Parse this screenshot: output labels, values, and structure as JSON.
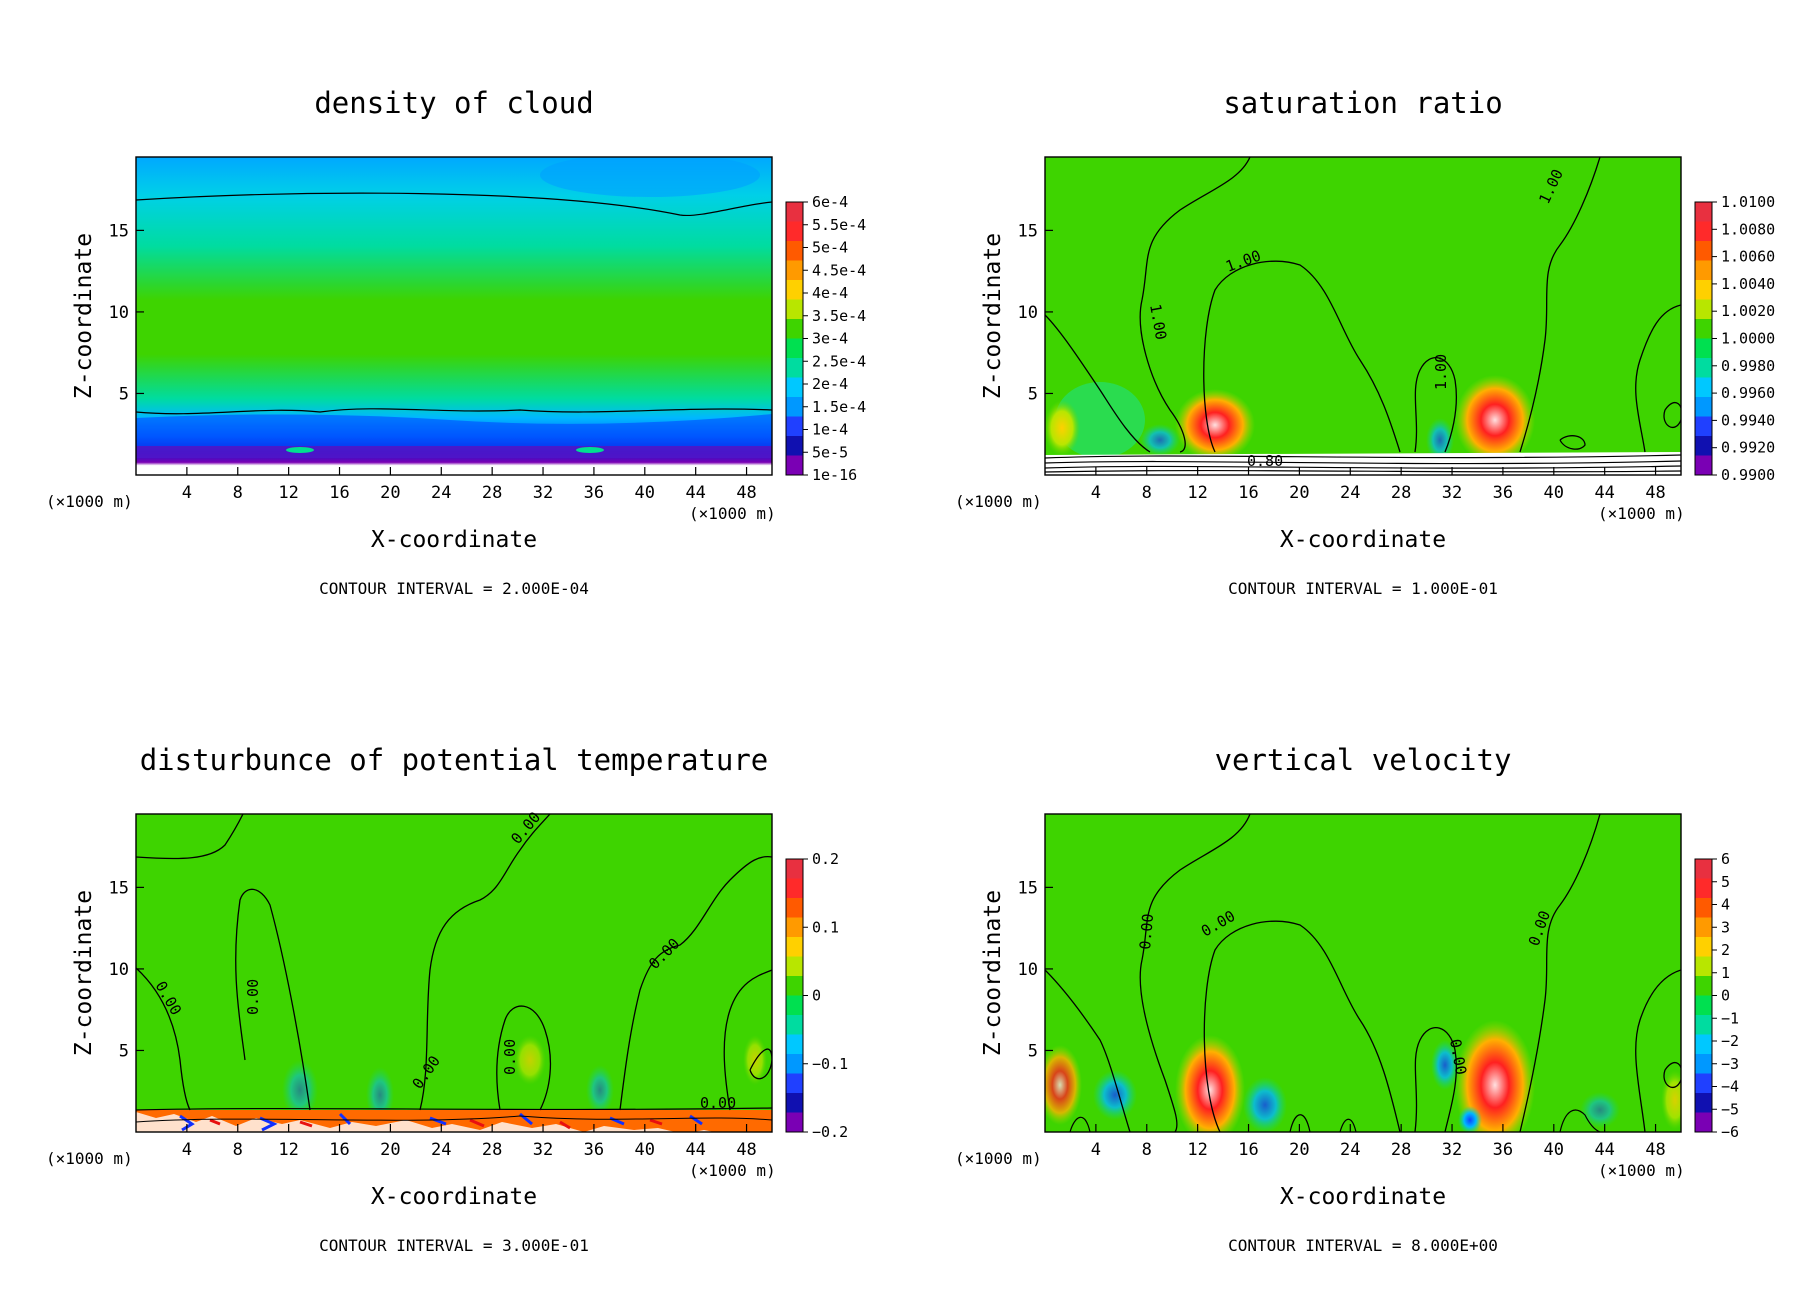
{
  "figure": {
    "unit_label": "(×1000 m)",
    "x_axis_label": "X-coordinate",
    "z_axis_label": "Z-coordinate"
  },
  "chart_data": [
    {
      "id": "cloud",
      "type": "heatmap",
      "title": "density of cloud",
      "xlabel": "X-coordinate",
      "ylabel": "Z-coordinate",
      "xlim": [
        0,
        50
      ],
      "ylim": [
        0,
        19.5
      ],
      "x_ticks": [
        4,
        8,
        12,
        16,
        20,
        24,
        28,
        32,
        36,
        40,
        44,
        48
      ],
      "y_ticks": [
        5,
        10,
        15
      ],
      "contour_interval": "CONTOUR INTERVAL = 2.000E-04",
      "colorbar": {
        "labels": [
          "6e-4",
          "5.5e-4",
          "5e-4",
          "4.5e-4",
          "4e-4",
          "3.5e-4",
          "3e-4",
          "2.5e-4",
          "2e-4",
          "1.5e-4",
          "1e-4",
          "5e-5",
          "1e-16"
        ],
        "colors": [
          "#e83040",
          "#ff2a2a",
          "#ff5a00",
          "#ff9a00",
          "#ffd000",
          "#b8e600",
          "#3ed400",
          "#00e050",
          "#00dca0",
          "#00c8ff",
          "#0098ff",
          "#2040ff",
          "#1010b0",
          "#7a00b4"
        ]
      },
      "contour_labels": []
    },
    {
      "id": "saturation",
      "type": "heatmap",
      "title": "saturation ratio",
      "xlabel": "X-coordinate",
      "ylabel": "Z-coordinate",
      "xlim": [
        0,
        50
      ],
      "ylim": [
        0,
        19.5
      ],
      "x_ticks": [
        4,
        8,
        12,
        16,
        20,
        24,
        28,
        32,
        36,
        40,
        44,
        48
      ],
      "y_ticks": [
        5,
        10,
        15
      ],
      "contour_interval": "CONTOUR INTERVAL = 1.000E-01",
      "colorbar": {
        "labels": [
          "1.0100",
          "1.0080",
          "1.0060",
          "1.0040",
          "1.0020",
          "1.0000",
          "0.9980",
          "0.9960",
          "0.9940",
          "0.9920",
          "0.9900"
        ],
        "colors": [
          "#e83040",
          "#ff2a2a",
          "#ff5a00",
          "#ff9a00",
          "#ffd000",
          "#b8e600",
          "#3ed400",
          "#00e050",
          "#00dca0",
          "#00c8ff",
          "#0098ff",
          "#2040ff",
          "#1010b0",
          "#7a00b4"
        ]
      },
      "contour_labels": [
        "1.00",
        "1.00",
        "1.00",
        "1.00",
        "0.80"
      ]
    },
    {
      "id": "theta",
      "type": "heatmap",
      "title": "disturbunce of potential temperature",
      "xlabel": "X-coordinate",
      "ylabel": "Z-coordinate",
      "xlim": [
        0,
        50
      ],
      "ylim": [
        0,
        19.5
      ],
      "x_ticks": [
        4,
        8,
        12,
        16,
        20,
        24,
        28,
        32,
        36,
        40,
        44,
        48
      ],
      "y_ticks": [
        5,
        10,
        15
      ],
      "contour_interval": "CONTOUR INTERVAL = 3.000E-01",
      "colorbar": {
        "labels": [
          "0.2",
          "0.1",
          "0",
          "−0.1",
          "−0.2"
        ],
        "colors": [
          "#e83040",
          "#ff2a2a",
          "#ff5a00",
          "#ff9a00",
          "#ffd000",
          "#b8e600",
          "#3ed400",
          "#00e050",
          "#00dca0",
          "#00c8ff",
          "#0098ff",
          "#2040ff",
          "#1010b0",
          "#7a00b4"
        ]
      },
      "contour_labels": [
        "0.00",
        "0.00",
        "0.00",
        "0.00",
        "0.00",
        "0.00",
        "0.00"
      ]
    },
    {
      "id": "velocity",
      "type": "heatmap",
      "title": "vertical velocity",
      "xlabel": "X-coordinate",
      "ylabel": "Z-coordinate",
      "xlim": [
        0,
        50
      ],
      "ylim": [
        0,
        19.5
      ],
      "x_ticks": [
        4,
        8,
        12,
        16,
        20,
        24,
        28,
        32,
        36,
        40,
        44,
        48
      ],
      "y_ticks": [
        5,
        10,
        15
      ],
      "contour_interval": "CONTOUR INTERVAL = 8.000E+00",
      "colorbar": {
        "labels": [
          "6",
          "5",
          "4",
          "3",
          "2",
          "1",
          "0",
          "−1",
          "−2",
          "−3",
          "−4",
          "−5",
          "−6"
        ],
        "colors": [
          "#e83040",
          "#ff2a2a",
          "#ff5a00",
          "#ff9a00",
          "#ffd000",
          "#b8e600",
          "#3ed400",
          "#00e050",
          "#00dca0",
          "#00c8ff",
          "#0098ff",
          "#2040ff",
          "#1010b0",
          "#7a00b4"
        ]
      },
      "contour_labels": [
        "0.00",
        "0.00",
        "0.00",
        "0.00"
      ]
    }
  ]
}
